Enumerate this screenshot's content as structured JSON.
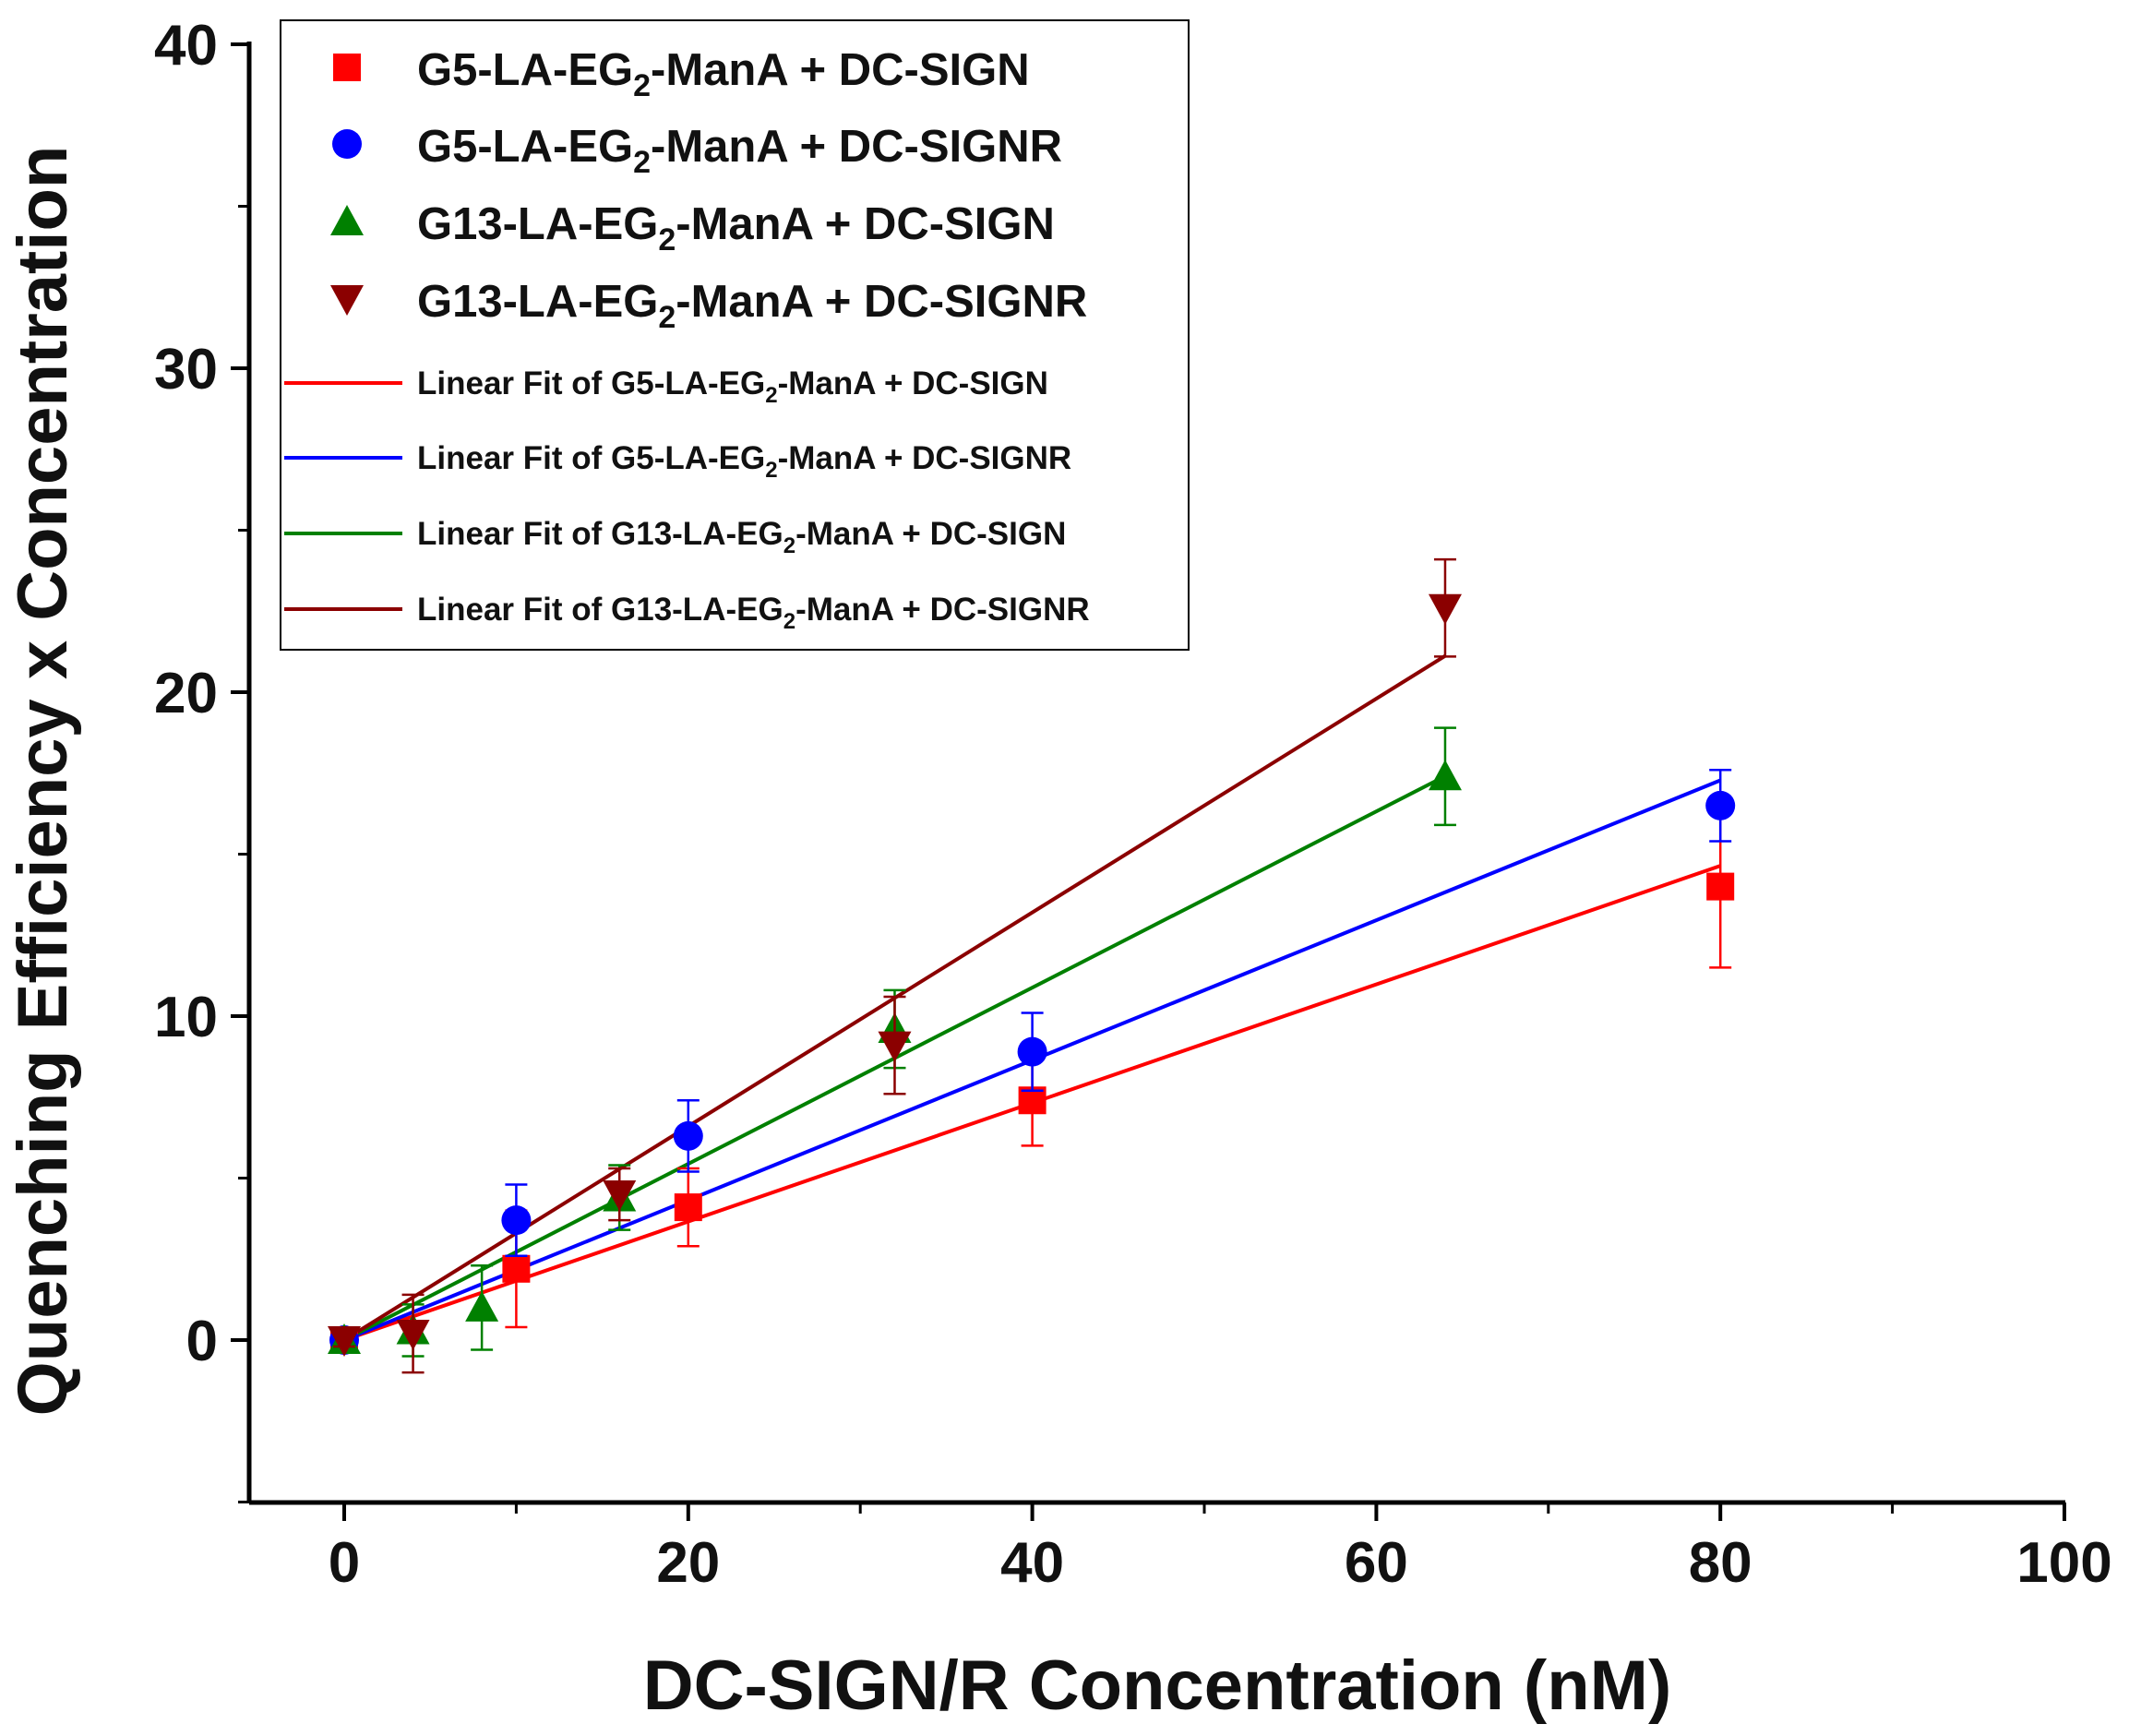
{
  "chart_data": {
    "type": "scatter",
    "title": "",
    "xlabel": "DC-SIGN/R Concentration (nM)",
    "ylabel": "Quenching Efficiency x Concentration",
    "xlim": [
      -5,
      100
    ],
    "ylim": [
      -5,
      40
    ],
    "xticks": [
      0,
      20,
      40,
      60,
      80,
      100
    ],
    "yticks": [
      0,
      10,
      20,
      30,
      40
    ],
    "grid": false,
    "legend_position": "top-left",
    "series": [
      {
        "name": "G5-LA-EG2-ManA + DC-SIGN",
        "label_main": "G5-LA-EG",
        "label_sub": "2",
        "label_rest": "-ManA + DC-SIGN",
        "color": "#ff0000",
        "marker": "square",
        "x": [
          0,
          10,
          20,
          40,
          80
        ],
        "y": [
          0,
          2.2,
          4.1,
          7.4,
          14.0
        ],
        "err": [
          0.2,
          1.8,
          1.2,
          1.4,
          2.5
        ],
        "fit": {
          "slope": 0.183,
          "x_range": [
            0,
            80
          ]
        }
      },
      {
        "name": "G5-LA-EG2-ManA + DC-SIGNR",
        "label_main": "G5-LA-EG",
        "label_sub": "2",
        "label_rest": "-ManA + DC-SIGNR",
        "color": "#0000ff",
        "marker": "circle",
        "x": [
          0,
          10,
          20,
          40,
          80
        ],
        "y": [
          0,
          3.7,
          6.3,
          8.9,
          16.5
        ],
        "err": [
          0.2,
          1.1,
          1.1,
          1.2,
          1.1
        ],
        "fit": {
          "slope": 0.216,
          "x_range": [
            0,
            80
          ]
        }
      },
      {
        "name": "G13-LA-EG2-ManA + DC-SIGN",
        "label_main": "G13-LA-EG",
        "label_sub": "2",
        "label_rest": "-ManA + DC-SIGN",
        "color": "#008000",
        "marker": "triangle-up",
        "x": [
          0,
          4,
          8,
          16,
          32,
          64
        ],
        "y": [
          0,
          0.3,
          1.0,
          4.4,
          9.6,
          17.4
        ],
        "err": [
          0.2,
          0.8,
          1.3,
          1.0,
          1.2,
          1.5
        ],
        "fit": {
          "slope": 0.272,
          "x_range": [
            0,
            64
          ]
        }
      },
      {
        "name": "G13-LA-EG2-ManA + DC-SIGNR",
        "label_main": "G13-LA-EG",
        "label_sub": "2",
        "label_rest": "-ManA + DC-SIGNR",
        "color": "#8b0000",
        "marker": "triangle-down",
        "x": [
          0,
          4,
          16,
          32,
          64
        ],
        "y": [
          0,
          0.2,
          4.5,
          9.1,
          22.6
        ],
        "err": [
          0.2,
          1.2,
          0.8,
          1.5,
          1.5
        ],
        "fit": {
          "slope": 0.33,
          "x_range": [
            0,
            64
          ]
        }
      }
    ],
    "fit_label_prefix": "Linear Fit of "
  }
}
